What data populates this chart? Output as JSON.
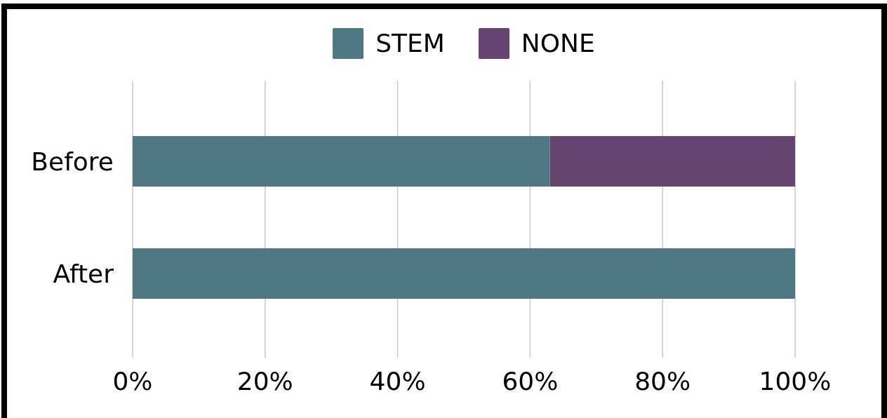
{
  "chart_data": {
    "type": "bar",
    "orientation": "horizontal",
    "stacked": true,
    "categories": [
      "Before",
      "After"
    ],
    "series": [
      {
        "name": "STEM",
        "color": "#4e7883",
        "values": [
          63,
          100
        ]
      },
      {
        "name": "NONE",
        "color": "#65446f",
        "values": [
          37,
          0
        ]
      }
    ],
    "xlim": [
      0,
      100
    ],
    "xticks": [
      {
        "value": 0,
        "label": "0%"
      },
      {
        "value": 20,
        "label": "20%"
      },
      {
        "value": 40,
        "label": "40%"
      },
      {
        "value": 60,
        "label": "60%"
      },
      {
        "value": 80,
        "label": "80%"
      },
      {
        "value": 100,
        "label": "100%"
      }
    ],
    "grid": "x",
    "legend": "top"
  }
}
